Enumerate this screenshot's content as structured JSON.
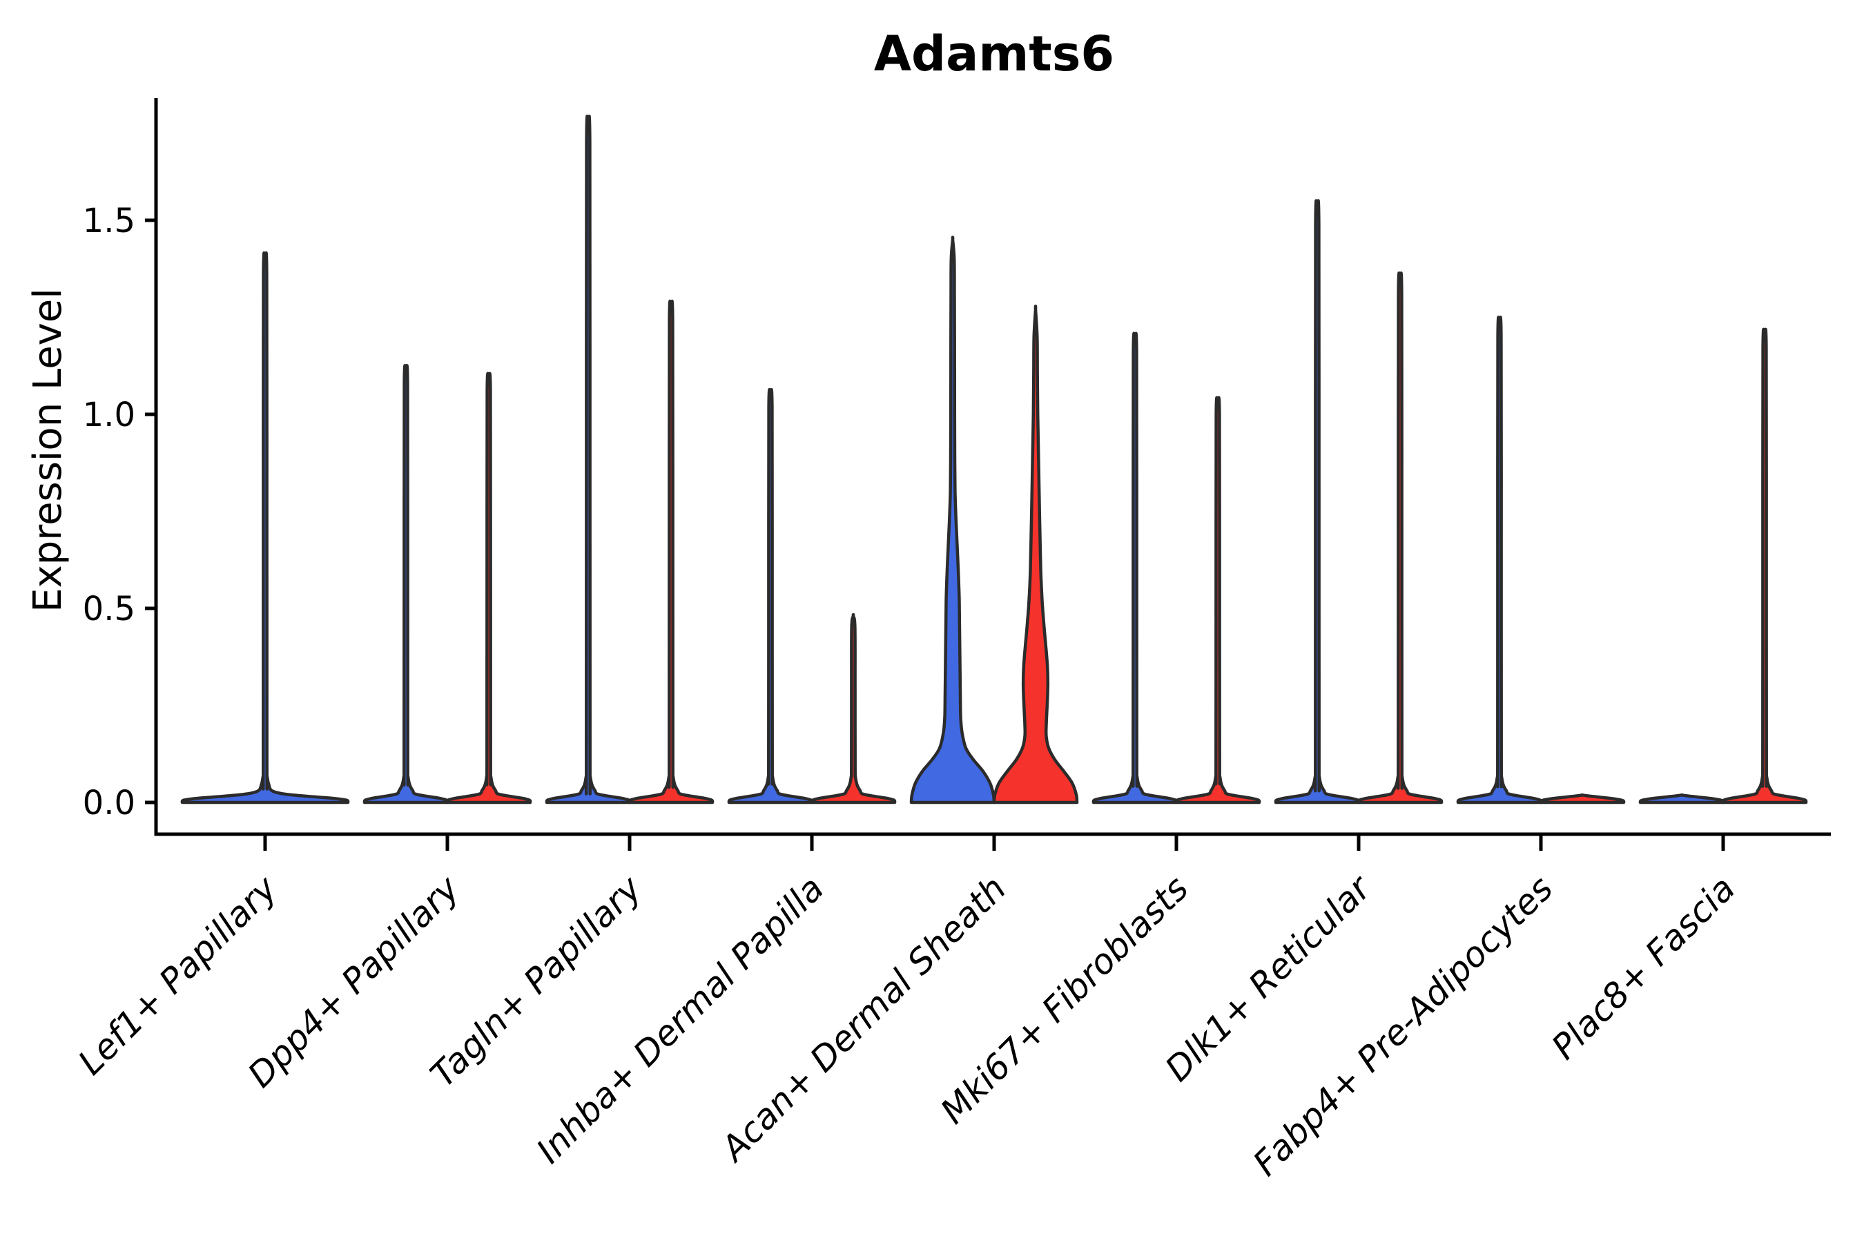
{
  "chart_data": {
    "type": "violin",
    "title": "Adamts6",
    "xlabel": "",
    "ylabel": "Expression Level",
    "yticks": [
      "0.0",
      "0.5",
      "1.0",
      "1.5"
    ],
    "ytick_values": [
      0.0,
      0.5,
      1.0,
      1.5
    ],
    "ylim": [
      0.0,
      1.82
    ],
    "grid": false,
    "legend": "none",
    "categories": [
      "Lef1+ Papillary",
      "Dpp4+ Papillary",
      "Tagln+ Papillary",
      "Inhba+ Dermal Papilla",
      "Acan+ Dermal Sheath",
      "Mki67+ Fibroblasts",
      "Dlk1+ Reticular",
      "Fabp4+ Pre-Adipocytes",
      "Plac8+ Fascia"
    ],
    "violins": [
      {
        "category": "Lef1+ Papillary",
        "side": "center",
        "shape": "spike",
        "max_expression": 1.39,
        "fill": "#4169E1"
      },
      {
        "category": "Dpp4+ Papillary",
        "side": "left",
        "shape": "spike",
        "max_expression": 1.11,
        "fill": "#4169E1"
      },
      {
        "category": "Dpp4+ Papillary",
        "side": "right",
        "shape": "spike",
        "max_expression": 1.09,
        "fill": "#F5332C"
      },
      {
        "category": "Tagln+ Papillary",
        "side": "left",
        "shape": "spike",
        "max_expression": 1.73,
        "fill": "#4169E1"
      },
      {
        "category": "Tagln+ Papillary",
        "side": "right",
        "shape": "spike",
        "max_expression": 1.27,
        "fill": "#F5332C"
      },
      {
        "category": "Inhba+ Dermal Papilla",
        "side": "left",
        "shape": "spike",
        "max_expression": 1.05,
        "fill": "#4169E1"
      },
      {
        "category": "Inhba+ Dermal Papilla",
        "side": "right",
        "shape": "spike",
        "max_expression": 0.48,
        "fill": "#F5332C"
      },
      {
        "category": "Acan+ Dermal Sheath",
        "side": "left",
        "shape": "wide",
        "max_expression": 1.45,
        "fill": "#4169E1",
        "profile": [
          [
            0,
            60
          ],
          [
            0.02,
            59
          ],
          [
            0.05,
            54
          ],
          [
            0.08,
            44
          ],
          [
            0.11,
            30
          ],
          [
            0.14,
            19
          ],
          [
            0.18,
            13.5
          ],
          [
            0.22,
            11.5
          ],
          [
            0.28,
            11
          ],
          [
            0.36,
            10.5
          ],
          [
            0.44,
            10
          ],
          [
            0.52,
            9.5
          ],
          [
            0.6,
            8
          ],
          [
            0.68,
            6
          ],
          [
            0.74,
            4.5
          ],
          [
            0.8,
            3.4
          ],
          [
            0.88,
            3
          ],
          [
            1.0,
            2.8
          ],
          [
            1.15,
            2.7
          ],
          [
            1.3,
            2.5
          ],
          [
            1.4,
            2.2
          ],
          [
            1.45,
            0
          ]
        ]
      },
      {
        "category": "Acan+ Dermal Sheath",
        "side": "right",
        "shape": "wide",
        "max_expression": 1.27,
        "fill": "#F5332C",
        "profile": [
          [
            0,
            60
          ],
          [
            0.02,
            59
          ],
          [
            0.05,
            53
          ],
          [
            0.08,
            41
          ],
          [
            0.11,
            28
          ],
          [
            0.14,
            19
          ],
          [
            0.17,
            15.5
          ],
          [
            0.2,
            15.5
          ],
          [
            0.25,
            16.8
          ],
          [
            0.3,
            17.8
          ],
          [
            0.35,
            17.2
          ],
          [
            0.4,
            15
          ],
          [
            0.46,
            12
          ],
          [
            0.52,
            9.5
          ],
          [
            0.6,
            7.5
          ],
          [
            0.7,
            6.3
          ],
          [
            0.8,
            5.2
          ],
          [
            0.9,
            4.2
          ],
          [
            1.0,
            3.2
          ],
          [
            1.1,
            2.7
          ],
          [
            1.2,
            2.3
          ],
          [
            1.27,
            0
          ]
        ]
      },
      {
        "category": "Mki67+ Fibroblasts",
        "side": "left",
        "shape": "spike",
        "max_expression": 1.19,
        "fill": "#4169E1"
      },
      {
        "category": "Mki67+ Fibroblasts",
        "side": "right",
        "shape": "spike",
        "max_expression": 1.03,
        "fill": "#F5332C"
      },
      {
        "category": "Dlk1+ Reticular",
        "side": "left",
        "shape": "spike",
        "max_expression": 1.52,
        "fill": "#4169E1"
      },
      {
        "category": "Dlk1+ Reticular",
        "side": "right",
        "shape": "spike",
        "max_expression": 1.34,
        "fill": "#F5332C"
      },
      {
        "category": "Fabp4+ Pre-Adipocytes",
        "side": "left",
        "shape": "spike",
        "max_expression": 1.23,
        "fill": "#4169E1"
      },
      {
        "category": "Fabp4+ Pre-Adipocytes",
        "side": "right",
        "shape": "flat",
        "max_expression": 0.0,
        "fill": "#F5332C"
      },
      {
        "category": "Plac8+ Fascia",
        "side": "left",
        "shape": "flat",
        "max_expression": 0.0,
        "fill": "#4169E1"
      },
      {
        "category": "Plac8+ Fascia",
        "side": "right",
        "shape": "spike",
        "max_expression": 1.2,
        "fill": "#F5332C"
      }
    ],
    "colors": {
      "condition_left": "#4169E1",
      "condition_right": "#F5332C",
      "violin_outline": "#2B2B2B",
      "axis": "#000000",
      "background": "#FFFFFF"
    }
  }
}
